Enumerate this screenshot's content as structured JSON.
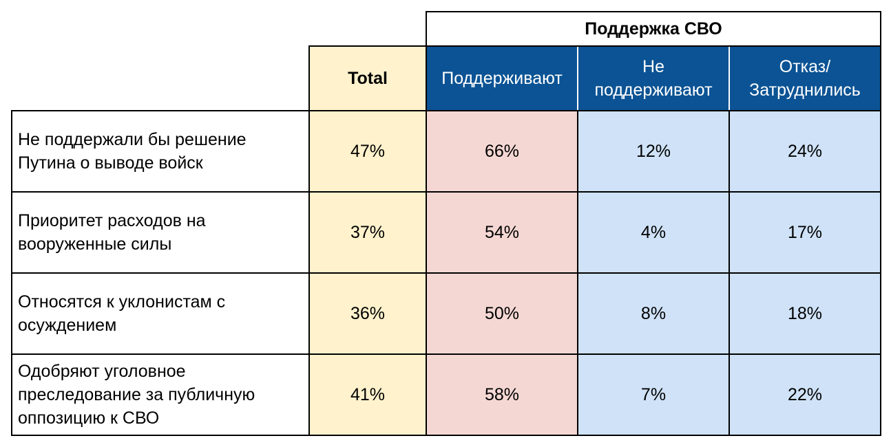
{
  "chart_data": {
    "type": "table",
    "group_header": "Поддержка СВО",
    "columns": [
      "Total",
      "Поддерживают",
      "Не поддерживают",
      "Отказ/ Затруднились"
    ],
    "rows": [
      {
        "label": "Не поддержали бы решение Путина о выводе войск",
        "values": [
          "47%",
          "66%",
          "12%",
          "24%"
        ]
      },
      {
        "label": "Приоритет расходов на вооруженные силы",
        "values": [
          "37%",
          "54%",
          "4%",
          "17%"
        ]
      },
      {
        "label": "Относятся к уклонистам с осуждением",
        "values": [
          "36%",
          "50%",
          "8%",
          "18%"
        ]
      },
      {
        "label": "Одобряют уголовное преследование за публичную оппозицию к СВО",
        "values": [
          "41%",
          "58%",
          "7%",
          "22%"
        ]
      }
    ],
    "colors": {
      "total": "#fff2cc",
      "support": "#f4d7d3",
      "other": "#cfe2f7",
      "header_blue": "#0b5394"
    }
  }
}
